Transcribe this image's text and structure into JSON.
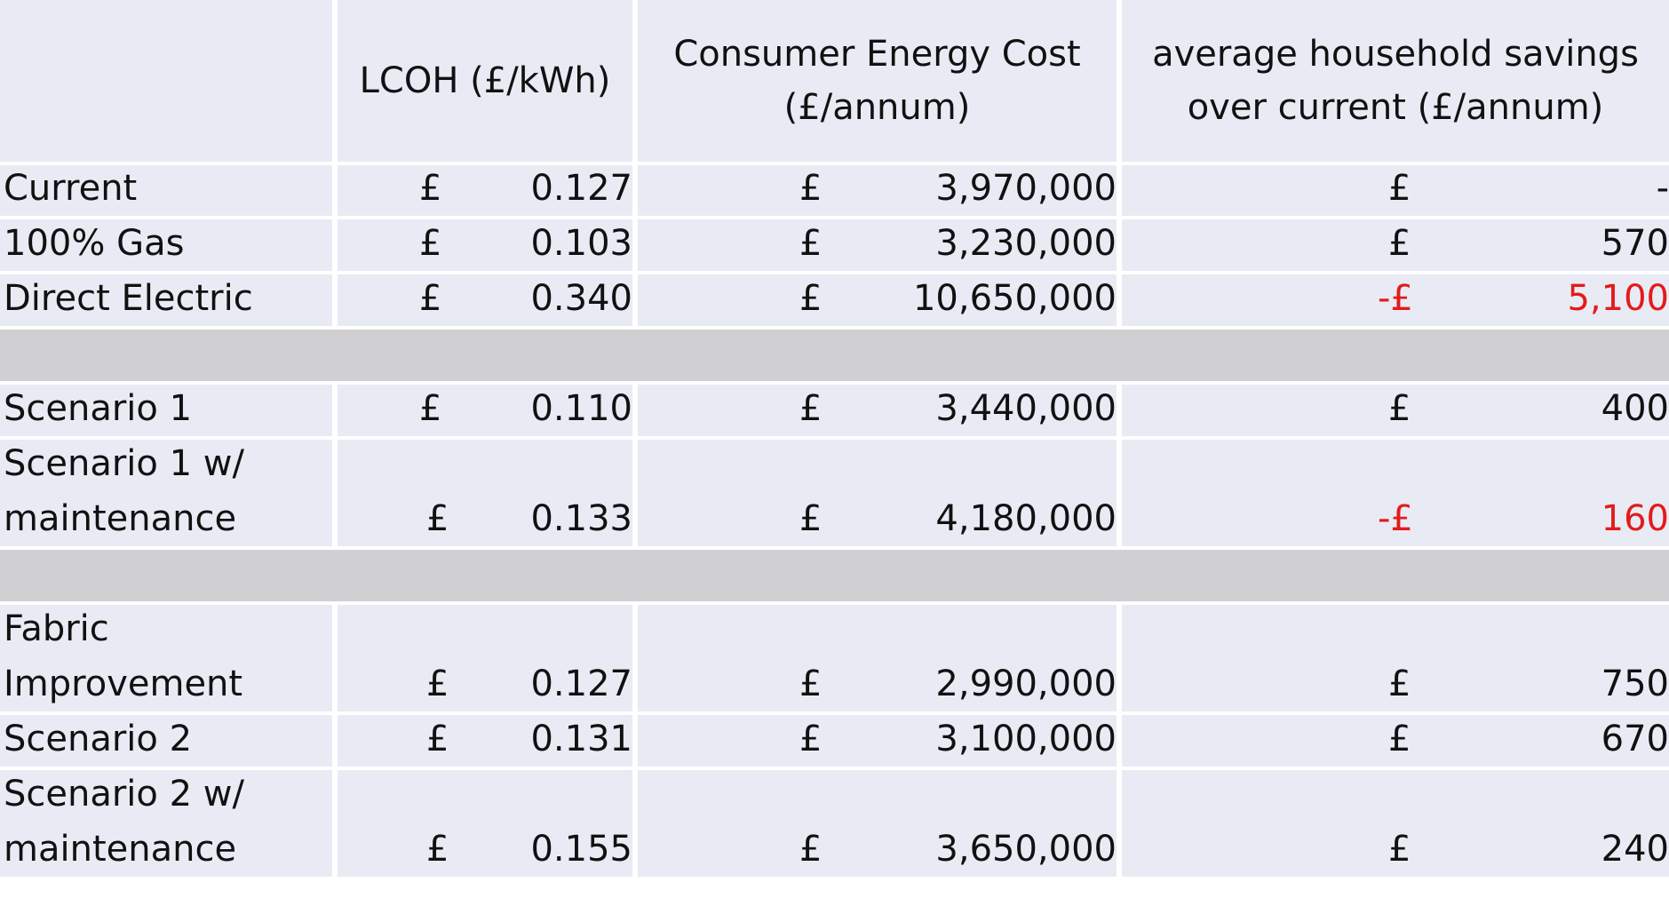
{
  "header": {
    "col0": "",
    "col1": "LCOH (£/kWh)",
    "col2": "Consumer Energy Cost\n(£/annum)",
    "col3": "average household savings\nover current (£/annum)"
  },
  "rows": [
    {
      "label1": "Current",
      "label2": "",
      "lcoh_cur": "£",
      "lcoh": "0.127",
      "cost_cur": "£",
      "cost": "3,970,000",
      "save_cur": "£",
      "save": "-",
      "negative": false
    },
    {
      "label1": "100% Gas",
      "label2": "",
      "lcoh_cur": "£",
      "lcoh": "0.103",
      "cost_cur": "£",
      "cost": "3,230,000",
      "save_cur": "£",
      "save": "570",
      "negative": false
    },
    {
      "label1": "Direct Electric",
      "label2": "",
      "lcoh_cur": "£",
      "lcoh": "0.340",
      "cost_cur": "£",
      "cost": "10,650,000",
      "save_cur": "-£",
      "save": "5,100",
      "negative": true
    },
    {
      "label1": "Scenario 1",
      "label2": "",
      "lcoh_cur": "£",
      "lcoh": "0.110",
      "cost_cur": "£",
      "cost": "3,440,000",
      "save_cur": "£",
      "save": "400",
      "negative": false
    },
    {
      "label1": "Scenario 1 w/",
      "label2": "maintenance",
      "lcoh_cur": "£",
      "lcoh": "0.133",
      "cost_cur": "£",
      "cost": "4,180,000",
      "save_cur": "-£",
      "save": "160",
      "negative": true
    },
    {
      "label1": "Fabric",
      "label2": "Improvement",
      "lcoh_cur": "£",
      "lcoh": "0.127",
      "cost_cur": "£",
      "cost": "2,990,000",
      "save_cur": "£",
      "save": "750",
      "negative": false
    },
    {
      "label1": "Scenario 2",
      "label2": "",
      "lcoh_cur": "£",
      "lcoh": "0.131",
      "cost_cur": "£",
      "cost": "3,100,000",
      "save_cur": "£",
      "save": "670",
      "negative": false
    },
    {
      "label1": "Scenario 2 w/",
      "label2": "maintenance",
      "lcoh_cur": "£",
      "lcoh": "0.155",
      "cost_cur": "£",
      "cost": "3,650,000",
      "save_cur": "£",
      "save": "240",
      "negative": false
    }
  ],
  "colors": {
    "cell_bg": "#e9ebf4",
    "separator_bg": "#d0cfd1",
    "negative_text": "#e31b1b"
  }
}
